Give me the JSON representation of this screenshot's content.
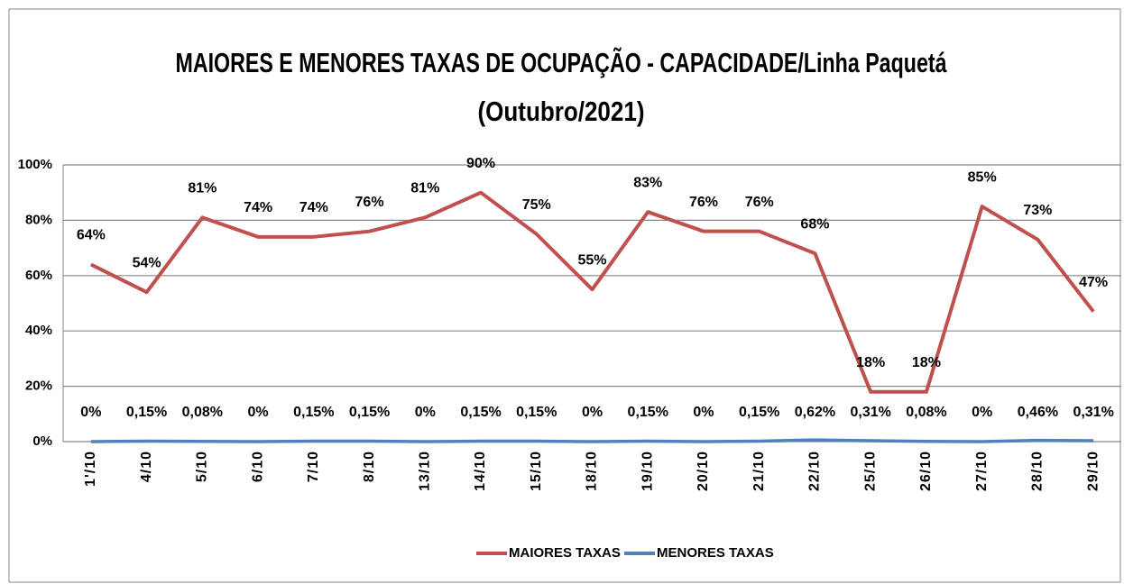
{
  "chart_data": {
    "type": "line",
    "title": "MAIORES E MENORES TAXAS DE OCUPAÇÃO - CAPACIDADE/Linha Paquetá",
    "subtitle": "(Outubro/2021)",
    "categories": [
      "1'/10",
      "4/10",
      "5/10",
      "6/10",
      "7/10",
      "8/10",
      "13/10",
      "14/10",
      "15/10",
      "18/10",
      "19/10",
      "20/10",
      "21/10",
      "22/10",
      "25/10",
      "26/10",
      "27/10",
      "28/10",
      "29/10"
    ],
    "series": [
      {
        "name": "MAIORES TAXAS",
        "color": "#c0504d",
        "values": [
          64,
          54,
          81,
          74,
          74,
          76,
          81,
          90,
          75,
          55,
          83,
          76,
          76,
          68,
          18,
          18,
          85,
          73,
          47
        ],
        "value_labels": [
          "64%",
          "54%",
          "81%",
          "74%",
          "74%",
          "76%",
          "81%",
          "90%",
          "75%",
          "55%",
          "83%",
          "76%",
          "76%",
          "68%",
          "18%",
          "18%",
          "85%",
          "73%",
          "47%"
        ]
      },
      {
        "name": "MENORES TAXAS",
        "color": "#4f81bd",
        "values": [
          0,
          0.15,
          0.08,
          0,
          0.15,
          0.15,
          0,
          0.15,
          0.15,
          0,
          0.15,
          0,
          0.15,
          0.62,
          0.31,
          0.08,
          0,
          0.46,
          0.31
        ],
        "value_labels": [
          "0%",
          "0,15%",
          "0,08%",
          "0%",
          "0,15%",
          "0,15%",
          "0%",
          "0,15%",
          "0,15%",
          "0%",
          "0,15%",
          "0%",
          "0,15%",
          "0,62%",
          "0,31%",
          "0,08%",
          "0%",
          "0,46%",
          "0,31%"
        ]
      }
    ],
    "ylim": [
      0,
      100
    ],
    "yticks": [
      {
        "value": 0,
        "label": "0%"
      },
      {
        "value": 20,
        "label": "20%"
      },
      {
        "value": 40,
        "label": "40%"
      },
      {
        "value": 60,
        "label": "60%"
      },
      {
        "value": 80,
        "label": "80%"
      },
      {
        "value": 100,
        "label": "100%"
      }
    ],
    "grid": true,
    "legend": "bottom"
  }
}
